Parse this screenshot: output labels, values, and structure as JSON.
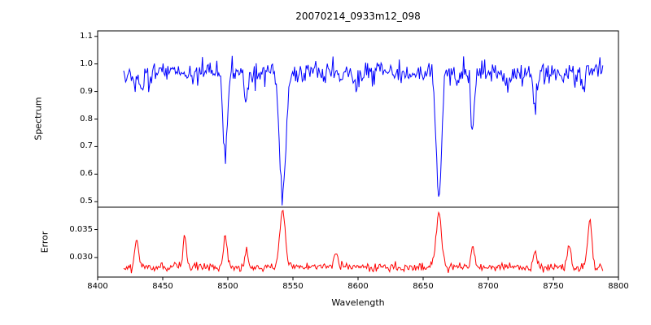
{
  "title": "20070214_0933m12_098",
  "xlabel": "Wavelength",
  "chart_data": {
    "type": "line",
    "title": "20070214_0933m12_098",
    "xlabel": "Wavelength",
    "xlim": [
      8400,
      8800
    ],
    "xtick_values": [
      8400,
      8450,
      8500,
      8550,
      8600,
      8650,
      8700,
      8750,
      8800
    ],
    "xtick_labels": [
      "8400",
      "8450",
      "8500",
      "8550",
      "8600",
      "8650",
      "8700",
      "8750",
      "8800"
    ],
    "x_start": 8420,
    "x_end": 8788,
    "n_points": 500,
    "legend": "none",
    "grid": false,
    "panels": [
      {
        "name": "spectrum",
        "ylabel": "Spectrum",
        "color": "#0000ff",
        "ylim": [
          0.48,
          1.12
        ],
        "ytick_values": [
          0.5,
          0.6,
          0.7,
          0.8,
          0.9,
          1.0,
          1.1
        ],
        "ytick_labels": [
          "0.5",
          "0.6",
          "0.7",
          "0.8",
          "0.9",
          "1.0",
          "1.1"
        ],
        "continuum": 0.97,
        "noise_sigma": 0.021,
        "seed": 20070214,
        "smooth_variation": [
          {
            "amplitude": 0.01,
            "period": 41,
            "phase": 0.7
          },
          {
            "amplitude": 0.006,
            "period": 13,
            "phase": 2.1
          }
        ],
        "absorption_lines": [
          {
            "center": 8434,
            "depth": 0.08,
            "sigma": 1.2
          },
          {
            "center": 8498,
            "depth": 0.33,
            "sigma": 1.7
          },
          {
            "center": 8514,
            "depth": 0.1,
            "sigma": 1.3
          },
          {
            "center": 8542,
            "depth": 0.46,
            "sigma": 2.4
          },
          {
            "center": 8598,
            "depth": 0.06,
            "sigma": 1.2
          },
          {
            "center": 8662,
            "depth": 0.43,
            "sigma": 2.1
          },
          {
            "center": 8688,
            "depth": 0.22,
            "sigma": 1.3
          },
          {
            "center": 8736,
            "depth": 0.15,
            "sigma": 1.4
          },
          {
            "center": 8773,
            "depth": 0.09,
            "sigma": 1.2
          }
        ]
      },
      {
        "name": "error",
        "ylabel": "Error",
        "color": "#ff0000",
        "ylim": [
          0.0265,
          0.039
        ],
        "ytick_values": [
          0.03,
          0.035
        ],
        "ytick_labels": [
          "0.030",
          "0.035"
        ],
        "baseline": 0.0283,
        "noise_sigma": 0.0004,
        "seed": 933,
        "peaks": [
          {
            "center": 8430,
            "height": 0.005,
            "sigma": 1.4
          },
          {
            "center": 8467,
            "height": 0.005,
            "sigma": 1.4
          },
          {
            "center": 8498,
            "height": 0.0055,
            "sigma": 1.5
          },
          {
            "center": 8514,
            "height": 0.003,
            "sigma": 1.2
          },
          {
            "center": 8542,
            "height": 0.0098,
            "sigma": 2.2
          },
          {
            "center": 8583,
            "height": 0.0022,
            "sigma": 1.4
          },
          {
            "center": 8662,
            "height": 0.0097,
            "sigma": 2.0
          },
          {
            "center": 8688,
            "height": 0.004,
            "sigma": 1.3
          },
          {
            "center": 8736,
            "height": 0.003,
            "sigma": 1.3
          },
          {
            "center": 8762,
            "height": 0.0042,
            "sigma": 1.3
          },
          {
            "center": 8778,
            "height": 0.0085,
            "sigma": 1.6
          }
        ]
      }
    ]
  }
}
